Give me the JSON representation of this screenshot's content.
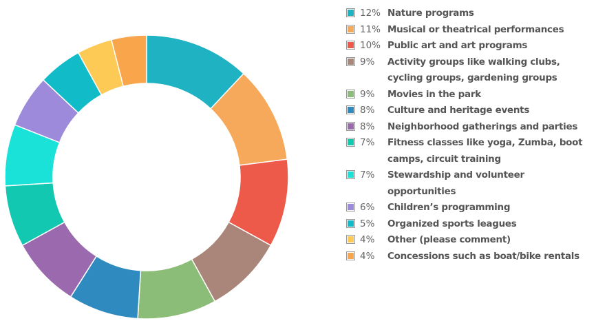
{
  "chart_data": {
    "type": "donut",
    "categories": [
      "Nature programs",
      "Musical or theatrical performances",
      "Public art and art programs",
      "Activity groups like walking clubs, cycling groups, gardening groups",
      "Movies in the park",
      "Culture and heritage events",
      "Neighborhood gatherings and parties",
      "Fitness classes like yoga, Zumba, boot camps, circuit training",
      "Stewardship and volunteer opportunities",
      "Children’s programming",
      "Organized sports leagues",
      "Other (please comment)",
      "Concessions such as boat/bike rentals"
    ],
    "values": [
      12,
      11,
      10,
      9,
      9,
      8,
      8,
      7,
      7,
      6,
      5,
      4,
      4
    ],
    "value_labels": [
      "12%",
      "11%",
      "10%",
      "9%",
      "9%",
      "8%",
      "8%",
      "7%",
      "7%",
      "6%",
      "5%",
      "4%",
      "4%"
    ],
    "colors": [
      "#1fb2c2",
      "#f6a85b",
      "#ee5a4a",
      "#a98679",
      "#8bbd79",
      "#2e8abf",
      "#9b69ad",
      "#12c8b0",
      "#1ae2d8",
      "#9d8ada",
      "#11bbc8",
      "#fdca55",
      "#f8a54b"
    ],
    "legend": "right"
  }
}
